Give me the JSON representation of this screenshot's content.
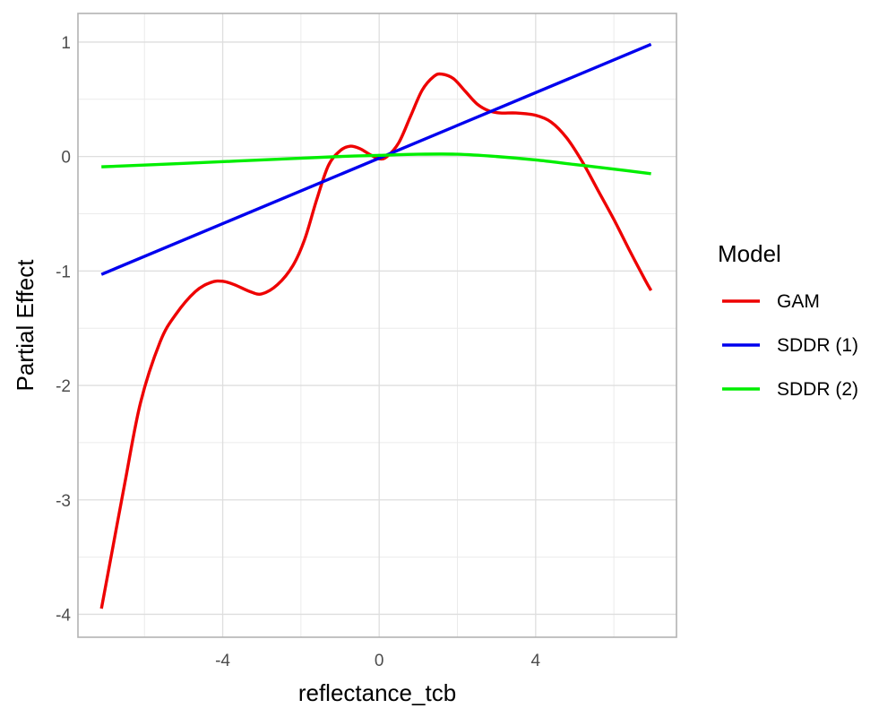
{
  "chart_data": {
    "type": "line",
    "title": "",
    "xlabel": "reflectance_tcb",
    "ylabel": "Partial Effect",
    "xlim": [
      -7.7,
      7.6
    ],
    "ylim": [
      -4.2,
      1.25
    ],
    "x_ticks": [
      -4,
      0,
      4
    ],
    "x_tick_labels": [
      "-4",
      "0",
      "4"
    ],
    "y_ticks": [
      1,
      0,
      -1,
      -2,
      -3,
      -4
    ],
    "y_tick_labels": [
      "1",
      "0",
      "-1",
      "-2",
      "-3",
      "-4"
    ],
    "grid": true,
    "legend": {
      "title": "Model",
      "position": "right"
    },
    "series": [
      {
        "name": "GAM",
        "color": "#ee0000",
        "points": [
          [
            -7.1,
            -3.95
          ],
          [
            -6.8,
            -3.4
          ],
          [
            -6.5,
            -2.85
          ],
          [
            -6.1,
            -2.15
          ],
          [
            -5.6,
            -1.62
          ],
          [
            -5.2,
            -1.38
          ],
          [
            -4.7,
            -1.18
          ],
          [
            -4.3,
            -1.1
          ],
          [
            -4.0,
            -1.09
          ],
          [
            -3.7,
            -1.12
          ],
          [
            -3.3,
            -1.18
          ],
          [
            -3.0,
            -1.2
          ],
          [
            -2.6,
            -1.12
          ],
          [
            -2.2,
            -0.95
          ],
          [
            -1.9,
            -0.72
          ],
          [
            -1.6,
            -0.38
          ],
          [
            -1.3,
            -0.08
          ],
          [
            -1.0,
            0.05
          ],
          [
            -0.75,
            0.09
          ],
          [
            -0.5,
            0.07
          ],
          [
            -0.25,
            0.02
          ],
          [
            0.0,
            -0.02
          ],
          [
            0.2,
            0.0
          ],
          [
            0.5,
            0.12
          ],
          [
            0.8,
            0.35
          ],
          [
            1.1,
            0.58
          ],
          [
            1.4,
            0.7
          ],
          [
            1.6,
            0.72
          ],
          [
            1.9,
            0.68
          ],
          [
            2.2,
            0.57
          ],
          [
            2.5,
            0.46
          ],
          [
            2.8,
            0.4
          ],
          [
            3.1,
            0.38
          ],
          [
            3.5,
            0.38
          ],
          [
            4.0,
            0.36
          ],
          [
            4.4,
            0.3
          ],
          [
            4.8,
            0.16
          ],
          [
            5.2,
            -0.05
          ],
          [
            5.6,
            -0.3
          ],
          [
            6.0,
            -0.55
          ],
          [
            6.4,
            -0.82
          ],
          [
            6.8,
            -1.08
          ],
          [
            6.95,
            -1.17
          ]
        ]
      },
      {
        "name": "SDDR (1)",
        "color": "#0000ee",
        "points": [
          [
            -7.1,
            -1.03
          ],
          [
            6.95,
            0.98
          ]
        ]
      },
      {
        "name": "SDDR (2)",
        "color": "#00ee00",
        "points": [
          [
            -7.1,
            -0.09
          ],
          [
            -5.0,
            -0.06
          ],
          [
            -3.0,
            -0.03
          ],
          [
            -1.0,
            0.0
          ],
          [
            0.0,
            0.01
          ],
          [
            1.0,
            0.02
          ],
          [
            2.0,
            0.02
          ],
          [
            3.0,
            0.0
          ],
          [
            4.0,
            -0.03
          ],
          [
            5.0,
            -0.07
          ],
          [
            6.0,
            -0.11
          ],
          [
            6.95,
            -0.15
          ]
        ]
      }
    ]
  }
}
